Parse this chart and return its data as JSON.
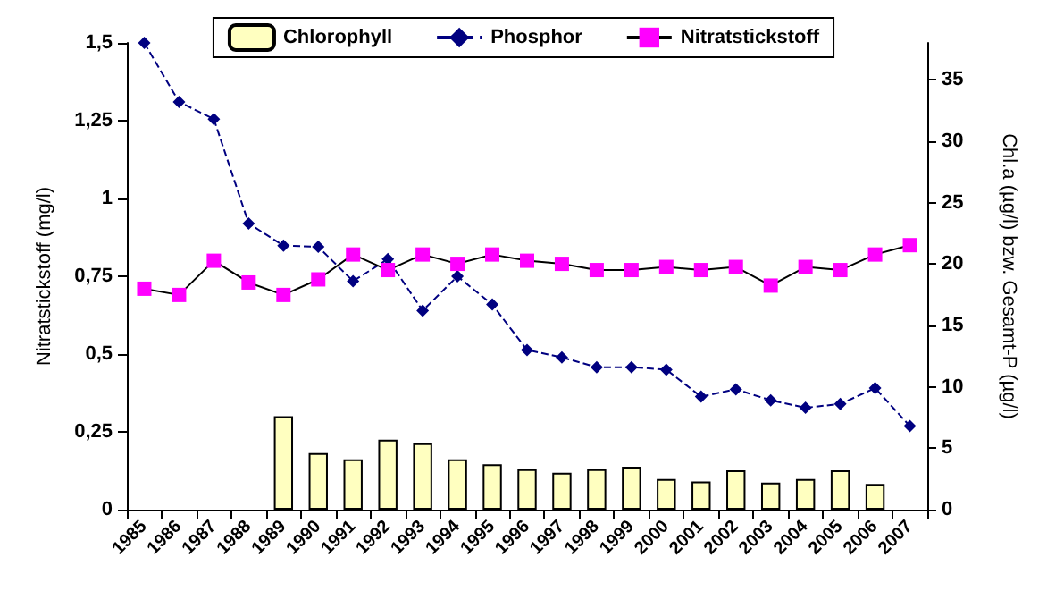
{
  "chart_data": {
    "type": "bar",
    "categories": [
      "1985",
      "1986",
      "1987",
      "1988",
      "1989",
      "1990",
      "1991",
      "1992",
      "1993",
      "1994",
      "1995",
      "1996",
      "1997",
      "1998",
      "1999",
      "2000",
      "2001",
      "2002",
      "2003",
      "2004",
      "2005",
      "2006",
      "2007"
    ],
    "ylabel": "Nitratstickstoff (mg/l)",
    "y2label": "Chl.a (µg/l) bzw. Gesamt-P (µg/l)",
    "series": [
      {
        "name": "Chlorophyll",
        "axis": "y2",
        "color": "#ffffc0",
        "values": [
          null,
          null,
          null,
          null,
          7.6,
          4.6,
          4.1,
          5.7,
          5.4,
          4.1,
          3.7,
          3.3,
          3.0,
          3.3,
          3.5,
          2.5,
          2.3,
          3.2,
          2.2,
          2.5,
          3.2,
          2.1,
          null
        ]
      },
      {
        "name": "Phosphor",
        "type": "line",
        "axis": "y2",
        "color": "#000080",
        "marker": "diamond",
        "line_style": "dashed",
        "values": [
          38.0,
          33.2,
          31.8,
          23.3,
          21.5,
          21.4,
          18.6,
          20.4,
          16.2,
          19.0,
          16.7,
          13.0,
          12.4,
          11.6,
          11.6,
          11.4,
          9.2,
          9.8,
          8.9,
          8.3,
          8.6,
          9.9,
          6.8
        ]
      },
      {
        "name": "Nitratstickstoff",
        "type": "line",
        "axis": "y",
        "color": "#ff00ff",
        "marker": "square",
        "line_style": "solid",
        "values": [
          0.71,
          0.69,
          0.8,
          0.73,
          0.69,
          0.74,
          0.82,
          0.77,
          0.82,
          0.79,
          0.82,
          0.8,
          0.79,
          0.77,
          0.77,
          0.78,
          0.77,
          0.78,
          0.72,
          0.78,
          0.77,
          0.82,
          0.85
        ]
      }
    ],
    "ylim": [
      0,
      1.5
    ],
    "yticks": [
      0,
      {
        "value": 0.25,
        "label": "0,25"
      },
      {
        "value": 0.5,
        "label": "0,5"
      },
      {
        "value": 0.75,
        "label": "0,75"
      },
      1,
      {
        "value": 1.25,
        "label": "1,25"
      },
      {
        "value": 1.5,
        "label": "1,5"
      }
    ],
    "y2lim": [
      0,
      38
    ],
    "y2ticks": [
      0,
      5,
      10,
      15,
      20,
      25,
      30,
      35
    ],
    "grid": false,
    "legend": "top"
  }
}
